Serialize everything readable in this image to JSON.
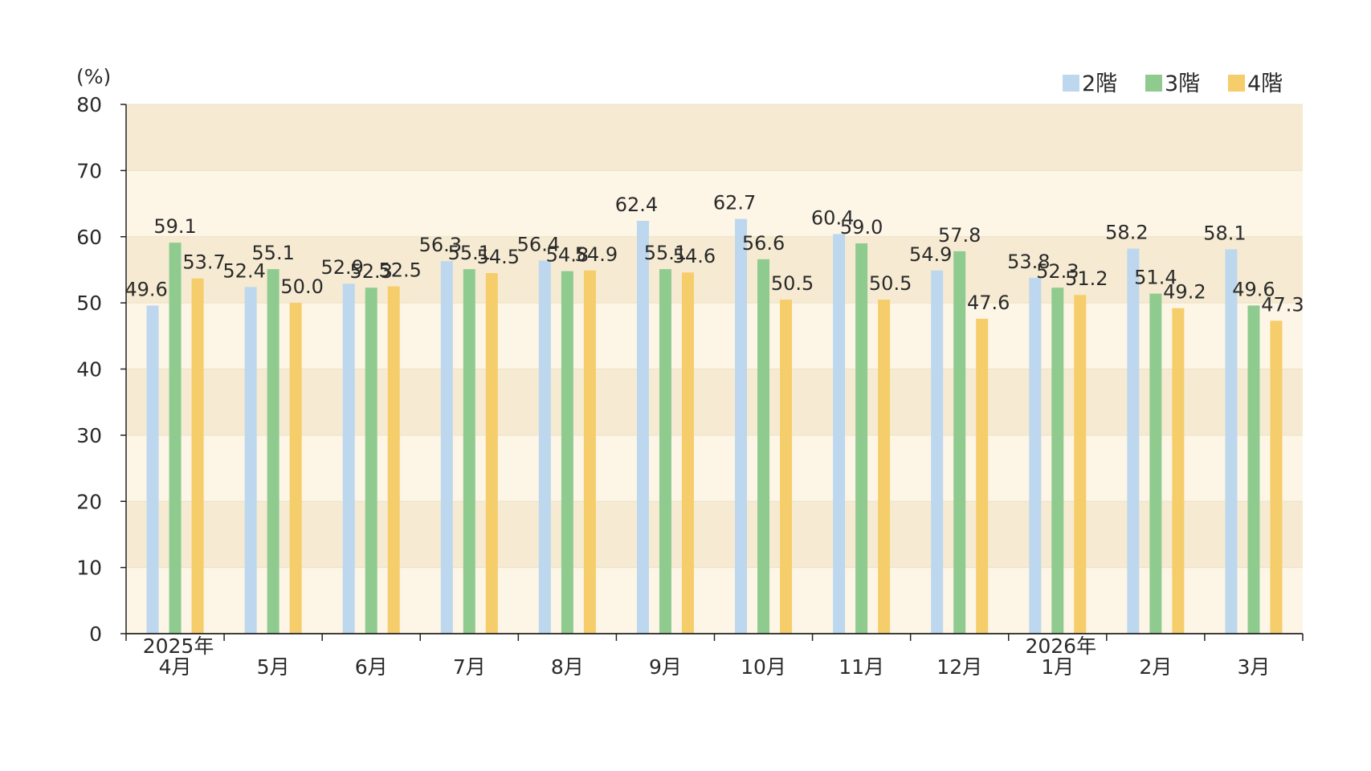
{
  "chart_data": {
    "type": "bar",
    "ylabel": "(%)",
    "ylim": [
      0,
      80
    ],
    "yticks": [
      0,
      10,
      20,
      30,
      40,
      50,
      60,
      70,
      80
    ],
    "categories": [
      "4月",
      "5月",
      "6月",
      "7月",
      "8月",
      "9月",
      "10月",
      "11月",
      "12月",
      "1月",
      "2月",
      "3月"
    ],
    "year_labels": [
      "2025年",
      "",
      "",
      "",
      "",
      "",
      "",
      "",
      "",
      "2026年",
      "",
      ""
    ],
    "series": [
      {
        "name": "2階",
        "color": "#bdd7ee",
        "values": [
          49.6,
          52.4,
          52.9,
          56.3,
          56.4,
          62.4,
          62.7,
          60.4,
          54.9,
          53.8,
          58.2,
          58.1
        ]
      },
      {
        "name": "3階",
        "color": "#8fcb8f",
        "values": [
          59.1,
          55.1,
          52.3,
          55.1,
          54.8,
          55.1,
          56.6,
          59.0,
          57.8,
          52.3,
          51.4,
          49.6
        ]
      },
      {
        "name": "4階",
        "color": "#f5cd6a",
        "values": [
          53.7,
          50.0,
          52.5,
          54.5,
          54.9,
          54.6,
          50.5,
          50.5,
          47.6,
          51.2,
          49.2,
          47.3
        ]
      }
    ],
    "legend_position": "top-right",
    "background_bands": [
      "#f6ebd2",
      "#fdf5e6"
    ],
    "grid": true
  }
}
